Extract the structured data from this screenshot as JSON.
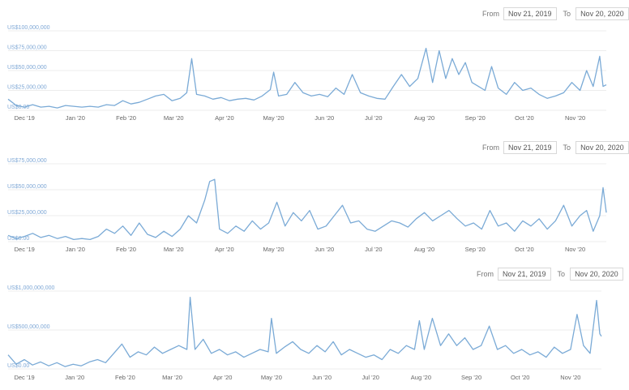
{
  "panels": [
    {
      "from_label": "From",
      "from_value": "Nov 21, 2019",
      "to_label": "To",
      "to_value": "Nov 20, 2020"
    },
    {
      "from_label": "From",
      "from_value": "Nov 21, 2019",
      "to_label": "To",
      "to_value": "Nov 20, 2020"
    },
    {
      "from_label": "From",
      "from_value": "Nov 21, 2019",
      "to_label": "To",
      "to_value": "Nov 20, 2020"
    }
  ],
  "chart_data": [
    {
      "type": "line",
      "title": "",
      "xlabel": "",
      "ylabel": "",
      "grid": true,
      "ylim": [
        0,
        100000000
      ],
      "yticks": [
        0,
        25000000,
        50000000,
        75000000,
        100000000
      ],
      "ytick_labels": [
        "US$0.00",
        "US$25,000,000",
        "US$50,000,000",
        "US$75,000,000",
        "US$100,000,000"
      ],
      "xticks": [
        "2019-12-01",
        "2020-01-01",
        "2020-02-01",
        "2020-03-01",
        "2020-04-01",
        "2020-05-01",
        "2020-06-01",
        "2020-07-01",
        "2020-08-01",
        "2020-09-01",
        "2020-10-01",
        "2020-11-01"
      ],
      "xtick_labels": [
        "Dec '19",
        "Jan '20",
        "Feb '20",
        "Mar '20",
        "Apr '20",
        "May '20",
        "Jun '20",
        "Jul '20",
        "Aug '20",
        "Sep '20",
        "Oct '20",
        "Nov '20"
      ],
      "x_start": "2019-11-21",
      "points": [
        [
          "2019-11-21",
          14000000
        ],
        [
          "2019-11-26",
          6000000
        ],
        [
          "2019-12-01",
          4000000
        ],
        [
          "2019-12-06",
          7000000
        ],
        [
          "2019-12-11",
          4000000
        ],
        [
          "2019-12-16",
          5000000
        ],
        [
          "2019-12-21",
          3000000
        ],
        [
          "2019-12-26",
          6000000
        ],
        [
          "2019-12-31",
          5000000
        ],
        [
          "2020-01-05",
          4000000
        ],
        [
          "2020-01-10",
          5000000
        ],
        [
          "2020-01-15",
          4000000
        ],
        [
          "2020-01-20",
          7000000
        ],
        [
          "2020-01-25",
          6000000
        ],
        [
          "2020-01-30",
          12000000
        ],
        [
          "2020-02-04",
          8000000
        ],
        [
          "2020-02-09",
          10000000
        ],
        [
          "2020-02-14",
          14000000
        ],
        [
          "2020-02-19",
          18000000
        ],
        [
          "2020-02-24",
          20000000
        ],
        [
          "2020-02-29",
          12000000
        ],
        [
          "2020-03-05",
          15000000
        ],
        [
          "2020-03-09",
          22000000
        ],
        [
          "2020-03-12",
          65000000
        ],
        [
          "2020-03-15",
          20000000
        ],
        [
          "2020-03-20",
          18000000
        ],
        [
          "2020-03-25",
          14000000
        ],
        [
          "2020-03-30",
          16000000
        ],
        [
          "2020-04-04",
          12000000
        ],
        [
          "2020-04-09",
          14000000
        ],
        [
          "2020-04-14",
          15000000
        ],
        [
          "2020-04-19",
          13000000
        ],
        [
          "2020-04-24",
          18000000
        ],
        [
          "2020-04-29",
          26000000
        ],
        [
          "2020-05-01",
          48000000
        ],
        [
          "2020-05-04",
          18000000
        ],
        [
          "2020-05-09",
          20000000
        ],
        [
          "2020-05-14",
          35000000
        ],
        [
          "2020-05-19",
          22000000
        ],
        [
          "2020-05-24",
          18000000
        ],
        [
          "2020-05-29",
          20000000
        ],
        [
          "2020-06-03",
          17000000
        ],
        [
          "2020-06-08",
          28000000
        ],
        [
          "2020-06-13",
          20000000
        ],
        [
          "2020-06-18",
          45000000
        ],
        [
          "2020-06-23",
          22000000
        ],
        [
          "2020-06-28",
          18000000
        ],
        [
          "2020-07-03",
          15000000
        ],
        [
          "2020-07-08",
          14000000
        ],
        [
          "2020-07-13",
          30000000
        ],
        [
          "2020-07-18",
          45000000
        ],
        [
          "2020-07-23",
          30000000
        ],
        [
          "2020-07-28",
          40000000
        ],
        [
          "2020-08-02",
          78000000
        ],
        [
          "2020-08-06",
          35000000
        ],
        [
          "2020-08-10",
          75000000
        ],
        [
          "2020-08-14",
          40000000
        ],
        [
          "2020-08-18",
          65000000
        ],
        [
          "2020-08-22",
          45000000
        ],
        [
          "2020-08-26",
          60000000
        ],
        [
          "2020-08-30",
          35000000
        ],
        [
          "2020-09-03",
          30000000
        ],
        [
          "2020-09-07",
          25000000
        ],
        [
          "2020-09-11",
          55000000
        ],
        [
          "2020-09-15",
          28000000
        ],
        [
          "2020-09-20",
          20000000
        ],
        [
          "2020-09-25",
          35000000
        ],
        [
          "2020-09-30",
          25000000
        ],
        [
          "2020-10-05",
          28000000
        ],
        [
          "2020-10-10",
          20000000
        ],
        [
          "2020-10-15",
          15000000
        ],
        [
          "2020-10-20",
          18000000
        ],
        [
          "2020-10-25",
          22000000
        ],
        [
          "2020-10-30",
          35000000
        ],
        [
          "2020-11-04",
          25000000
        ],
        [
          "2020-11-08",
          50000000
        ],
        [
          "2020-11-12",
          30000000
        ],
        [
          "2020-11-16",
          68000000
        ],
        [
          "2020-11-18",
          30000000
        ],
        [
          "2020-11-20",
          32000000
        ]
      ]
    },
    {
      "type": "line",
      "title": "",
      "xlabel": "",
      "ylabel": "",
      "grid": true,
      "ylim": [
        0,
        75000000
      ],
      "yticks": [
        0,
        25000000,
        50000000,
        75000000
      ],
      "ytick_labels": [
        "US$0.00",
        "US$25,000,000",
        "US$50,000,000",
        "US$75,000,000"
      ],
      "xticks": [
        "2019-12-01",
        "2020-01-01",
        "2020-02-01",
        "2020-03-01",
        "2020-04-01",
        "2020-05-01",
        "2020-06-01",
        "2020-07-01",
        "2020-08-01",
        "2020-09-01",
        "2020-10-01",
        "2020-11-01"
      ],
      "xtick_labels": [
        "Dec '19",
        "Jan '20",
        "Feb '20",
        "Mar '20",
        "Apr '20",
        "May '20",
        "Jun '20",
        "Jul '20",
        "Aug '20",
        "Sep '20",
        "Oct '20",
        "Nov '20"
      ],
      "x_start": "2019-11-21",
      "points": [
        [
          "2019-11-21",
          6000000
        ],
        [
          "2019-11-26",
          3000000
        ],
        [
          "2019-12-01",
          5000000
        ],
        [
          "2019-12-06",
          8000000
        ],
        [
          "2019-12-11",
          4000000
        ],
        [
          "2019-12-16",
          6000000
        ],
        [
          "2019-12-21",
          3000000
        ],
        [
          "2019-12-26",
          5000000
        ],
        [
          "2019-12-31",
          2000000
        ],
        [
          "2020-01-05",
          3000000
        ],
        [
          "2020-01-10",
          2000000
        ],
        [
          "2020-01-15",
          5000000
        ],
        [
          "2020-01-20",
          12000000
        ],
        [
          "2020-01-25",
          8000000
        ],
        [
          "2020-01-30",
          15000000
        ],
        [
          "2020-02-04",
          6000000
        ],
        [
          "2020-02-09",
          18000000
        ],
        [
          "2020-02-14",
          7000000
        ],
        [
          "2020-02-19",
          4000000
        ],
        [
          "2020-02-24",
          10000000
        ],
        [
          "2020-02-29",
          5000000
        ],
        [
          "2020-03-05",
          12000000
        ],
        [
          "2020-03-10",
          25000000
        ],
        [
          "2020-03-15",
          18000000
        ],
        [
          "2020-03-20",
          40000000
        ],
        [
          "2020-03-23",
          58000000
        ],
        [
          "2020-03-26",
          60000000
        ],
        [
          "2020-03-29",
          12000000
        ],
        [
          "2020-04-03",
          8000000
        ],
        [
          "2020-04-08",
          15000000
        ],
        [
          "2020-04-13",
          10000000
        ],
        [
          "2020-04-18",
          20000000
        ],
        [
          "2020-04-23",
          12000000
        ],
        [
          "2020-04-28",
          18000000
        ],
        [
          "2020-05-03",
          38000000
        ],
        [
          "2020-05-08",
          15000000
        ],
        [
          "2020-05-13",
          28000000
        ],
        [
          "2020-05-18",
          20000000
        ],
        [
          "2020-05-23",
          30000000
        ],
        [
          "2020-05-28",
          12000000
        ],
        [
          "2020-06-02",
          15000000
        ],
        [
          "2020-06-07",
          25000000
        ],
        [
          "2020-06-12",
          35000000
        ],
        [
          "2020-06-17",
          18000000
        ],
        [
          "2020-06-22",
          20000000
        ],
        [
          "2020-06-27",
          12000000
        ],
        [
          "2020-07-02",
          10000000
        ],
        [
          "2020-07-07",
          15000000
        ],
        [
          "2020-07-12",
          20000000
        ],
        [
          "2020-07-17",
          18000000
        ],
        [
          "2020-07-22",
          14000000
        ],
        [
          "2020-07-27",
          22000000
        ],
        [
          "2020-08-01",
          28000000
        ],
        [
          "2020-08-06",
          20000000
        ],
        [
          "2020-08-11",
          25000000
        ],
        [
          "2020-08-16",
          30000000
        ],
        [
          "2020-08-21",
          22000000
        ],
        [
          "2020-08-26",
          15000000
        ],
        [
          "2020-08-31",
          18000000
        ],
        [
          "2020-09-05",
          12000000
        ],
        [
          "2020-09-10",
          30000000
        ],
        [
          "2020-09-15",
          15000000
        ],
        [
          "2020-09-20",
          18000000
        ],
        [
          "2020-09-25",
          10000000
        ],
        [
          "2020-09-30",
          20000000
        ],
        [
          "2020-10-05",
          15000000
        ],
        [
          "2020-10-10",
          22000000
        ],
        [
          "2020-10-15",
          12000000
        ],
        [
          "2020-10-20",
          20000000
        ],
        [
          "2020-10-25",
          35000000
        ],
        [
          "2020-10-30",
          15000000
        ],
        [
          "2020-11-04",
          25000000
        ],
        [
          "2020-11-08",
          30000000
        ],
        [
          "2020-11-12",
          10000000
        ],
        [
          "2020-11-16",
          25000000
        ],
        [
          "2020-11-18",
          52000000
        ],
        [
          "2020-11-20",
          28000000
        ]
      ]
    },
    {
      "type": "line",
      "title": "",
      "xlabel": "",
      "ylabel": "",
      "grid": true,
      "ylim": [
        0,
        1000000000
      ],
      "yticks": [
        0,
        500000000,
        1000000000
      ],
      "ytick_labels": [
        "US$0.00",
        "US$500,000,000",
        "US$1,000,000,000"
      ],
      "xticks": [
        "2019-12-01",
        "2020-01-01",
        "2020-02-01",
        "2020-03-01",
        "2020-04-01",
        "2020-05-01",
        "2020-06-01",
        "2020-07-01",
        "2020-08-01",
        "2020-09-01",
        "2020-10-01",
        "2020-11-01"
      ],
      "xtick_labels": [
        "Dec '19",
        "Jan '20",
        "Feb '20",
        "Mar '20",
        "Apr '20",
        "May '20",
        "Jun '20",
        "Jul '20",
        "Aug '20",
        "Sep '20",
        "Oct '20",
        "Nov '20"
      ],
      "x_start": "2019-11-21",
      "points": [
        [
          "2019-11-21",
          180000000
        ],
        [
          "2019-11-26",
          60000000
        ],
        [
          "2019-12-01",
          120000000
        ],
        [
          "2019-12-06",
          50000000
        ],
        [
          "2019-12-11",
          90000000
        ],
        [
          "2019-12-16",
          40000000
        ],
        [
          "2019-12-21",
          80000000
        ],
        [
          "2019-12-26",
          30000000
        ],
        [
          "2019-12-31",
          60000000
        ],
        [
          "2020-01-05",
          40000000
        ],
        [
          "2020-01-10",
          90000000
        ],
        [
          "2020-01-15",
          120000000
        ],
        [
          "2020-01-20",
          80000000
        ],
        [
          "2020-01-25",
          200000000
        ],
        [
          "2020-01-30",
          320000000
        ],
        [
          "2020-02-04",
          150000000
        ],
        [
          "2020-02-09",
          220000000
        ],
        [
          "2020-02-14",
          180000000
        ],
        [
          "2020-02-19",
          280000000
        ],
        [
          "2020-02-24",
          200000000
        ],
        [
          "2020-02-29",
          250000000
        ],
        [
          "2020-03-05",
          300000000
        ],
        [
          "2020-03-10",
          250000000
        ],
        [
          "2020-03-12",
          920000000
        ],
        [
          "2020-03-15",
          250000000
        ],
        [
          "2020-03-20",
          380000000
        ],
        [
          "2020-03-25",
          200000000
        ],
        [
          "2020-03-30",
          250000000
        ],
        [
          "2020-04-04",
          180000000
        ],
        [
          "2020-04-09",
          220000000
        ],
        [
          "2020-04-14",
          150000000
        ],
        [
          "2020-04-19",
          200000000
        ],
        [
          "2020-04-24",
          250000000
        ],
        [
          "2020-04-29",
          220000000
        ],
        [
          "2020-05-01",
          650000000
        ],
        [
          "2020-05-04",
          200000000
        ],
        [
          "2020-05-09",
          280000000
        ],
        [
          "2020-05-14",
          350000000
        ],
        [
          "2020-05-19",
          250000000
        ],
        [
          "2020-05-24",
          200000000
        ],
        [
          "2020-05-29",
          300000000
        ],
        [
          "2020-06-03",
          220000000
        ],
        [
          "2020-06-08",
          350000000
        ],
        [
          "2020-06-13",
          180000000
        ],
        [
          "2020-06-18",
          250000000
        ],
        [
          "2020-06-23",
          200000000
        ],
        [
          "2020-06-28",
          150000000
        ],
        [
          "2020-07-03",
          180000000
        ],
        [
          "2020-07-08",
          120000000
        ],
        [
          "2020-07-13",
          250000000
        ],
        [
          "2020-07-18",
          200000000
        ],
        [
          "2020-07-23",
          300000000
        ],
        [
          "2020-07-28",
          250000000
        ],
        [
          "2020-07-31",
          620000000
        ],
        [
          "2020-08-03",
          250000000
        ],
        [
          "2020-08-08",
          650000000
        ],
        [
          "2020-08-13",
          300000000
        ],
        [
          "2020-08-18",
          450000000
        ],
        [
          "2020-08-23",
          300000000
        ],
        [
          "2020-08-28",
          400000000
        ],
        [
          "2020-09-02",
          250000000
        ],
        [
          "2020-09-07",
          300000000
        ],
        [
          "2020-09-12",
          550000000
        ],
        [
          "2020-09-17",
          250000000
        ],
        [
          "2020-09-22",
          300000000
        ],
        [
          "2020-09-27",
          200000000
        ],
        [
          "2020-10-02",
          250000000
        ],
        [
          "2020-10-07",
          180000000
        ],
        [
          "2020-10-12",
          220000000
        ],
        [
          "2020-10-17",
          150000000
        ],
        [
          "2020-10-22",
          280000000
        ],
        [
          "2020-10-27",
          200000000
        ],
        [
          "2020-11-01",
          250000000
        ],
        [
          "2020-11-05",
          700000000
        ],
        [
          "2020-11-09",
          300000000
        ],
        [
          "2020-11-13",
          200000000
        ],
        [
          "2020-11-17",
          880000000
        ],
        [
          "2020-11-19",
          450000000
        ],
        [
          "2020-11-20",
          420000000
        ]
      ]
    }
  ]
}
